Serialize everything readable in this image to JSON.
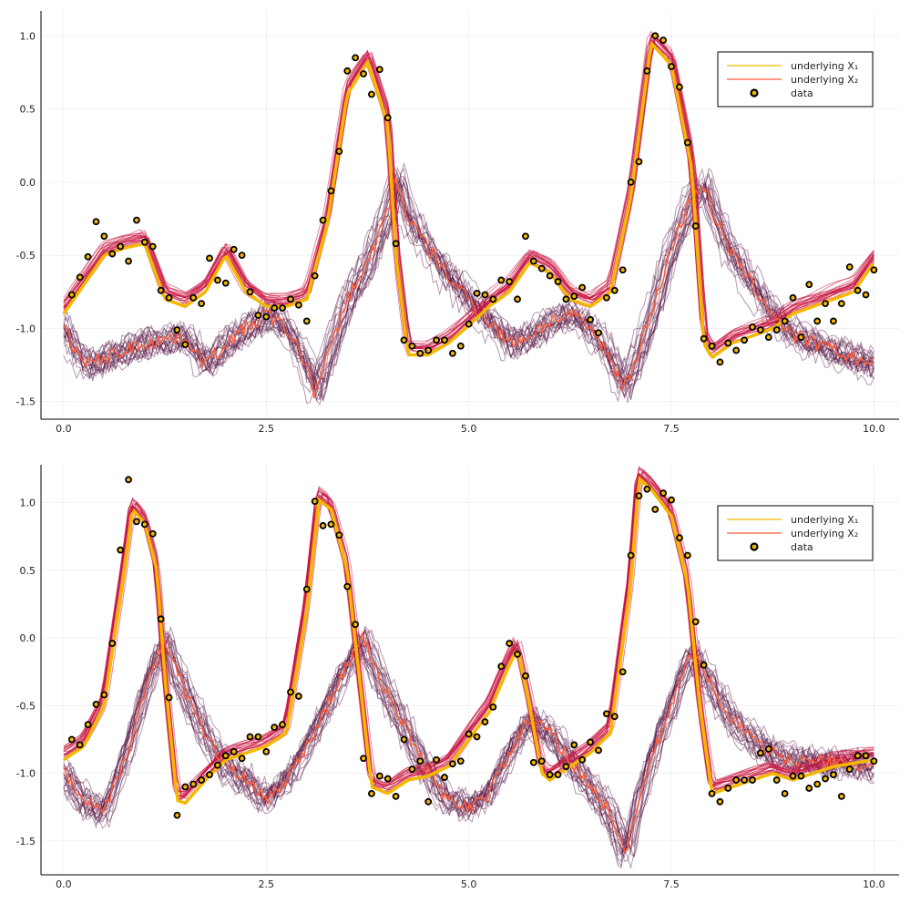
{
  "colors": {
    "x1": "#f5b800",
    "x2": "#ff5a36",
    "ensemble1": "#c8103c",
    "ensemble2": "#5a1a4a",
    "data_fill": "#f5b800",
    "data_edge": "#000000"
  },
  "chart_data": [
    {
      "type": "line",
      "xlim": [
        -0.28,
        10.31
      ],
      "ylim": [
        -1.62,
        1.17
      ],
      "xticks": [
        "0.0",
        "2.5",
        "5.0",
        "7.5",
        "10.0"
      ],
      "yticks": [
        "-1.5",
        "-1.0",
        "-0.5",
        "0.0",
        "0.5",
        "1.0"
      ],
      "grid": true,
      "legend_position": "top-right",
      "legend": [
        "underlying X₁",
        "underlying X₂",
        "data"
      ],
      "series": [
        {
          "name": "underlying X₁",
          "x": [
            0,
            0.25,
            0.5,
            0.75,
            1.0,
            1.25,
            1.5,
            1.75,
            2.0,
            2.25,
            2.5,
            2.75,
            3.0,
            3.25,
            3.5,
            3.75,
            4.0,
            4.1,
            4.25,
            4.5,
            4.75,
            5.0,
            5.25,
            5.5,
            5.75,
            6.0,
            6.25,
            6.5,
            6.75,
            7.0,
            7.25,
            7.5,
            7.75,
            7.9,
            8.0,
            8.25,
            8.5,
            8.75,
            9.0,
            9.25,
            9.5,
            9.75,
            10
          ],
          "y": [
            -0.9,
            -0.7,
            -0.5,
            -0.45,
            -0.42,
            -0.8,
            -0.85,
            -0.75,
            -0.5,
            -0.75,
            -0.85,
            -0.85,
            -0.8,
            -0.3,
            0.6,
            0.82,
            0.4,
            -0.5,
            -1.18,
            -1.18,
            -1.1,
            -0.98,
            -0.85,
            -0.75,
            -0.55,
            -0.62,
            -0.8,
            -0.85,
            -0.75,
            -0.1,
            0.95,
            0.8,
            0.1,
            -1.1,
            -1.2,
            -1.1,
            -1.05,
            -1.0,
            -0.9,
            -0.85,
            -0.8,
            -0.75,
            -0.55
          ]
        },
        {
          "name": "underlying X₂",
          "x": [
            0,
            0.25,
            0.5,
            0.75,
            1.0,
            1.5,
            1.75,
            2.0,
            2.5,
            2.75,
            3.0,
            3.1,
            3.25,
            3.5,
            3.75,
            4.0,
            4.1,
            4.25,
            4.5,
            4.75,
            5.0,
            5.25,
            5.5,
            5.75,
            6.0,
            6.25,
            6.5,
            6.75,
            6.9,
            7.0,
            7.25,
            7.5,
            7.75,
            7.9,
            8.0,
            8.25,
            8.5,
            8.75,
            9.0,
            9.5,
            10
          ],
          "y": [
            -1.0,
            -1.25,
            -1.2,
            -1.15,
            -1.1,
            -1.05,
            -1.25,
            -1.1,
            -0.9,
            -1.0,
            -1.25,
            -1.45,
            -1.2,
            -0.8,
            -0.55,
            -0.2,
            0.05,
            -0.25,
            -0.45,
            -0.65,
            -0.8,
            -0.95,
            -1.1,
            -1.05,
            -0.95,
            -0.9,
            -1.0,
            -1.2,
            -1.4,
            -1.3,
            -0.9,
            -0.45,
            -0.1,
            0.0,
            -0.2,
            -0.5,
            -0.7,
            -0.9,
            -1.05,
            -1.15,
            -1.25
          ]
        },
        {
          "name": "data",
          "type": "scatter",
          "x_start": 0.1,
          "x_step": 0.1,
          "y": [
            -0.77,
            -0.65,
            -0.51,
            -0.27,
            -0.37,
            -0.49,
            -0.44,
            -0.54,
            -0.26,
            -0.41,
            -0.44,
            -0.74,
            -0.79,
            -1.01,
            -1.11,
            -0.79,
            -0.83,
            -0.52,
            -0.67,
            -0.69,
            -0.46,
            -0.5,
            -0.75,
            -0.91,
            -0.92,
            -0.86,
            -0.86,
            -0.8,
            -0.84,
            -0.95,
            -0.64,
            -0.26,
            -0.06,
            0.21,
            0.76,
            0.85,
            0.74,
            0.6,
            0.77,
            0.44,
            -0.42,
            -1.08,
            -1.12,
            -1.17,
            -1.15,
            -1.08,
            -1.08,
            -1.17,
            -1.12,
            -0.97,
            -0.76,
            -0.77,
            -0.8,
            -0.67,
            -0.68,
            -0.8,
            -0.37,
            -0.54,
            -0.59,
            -0.64,
            -0.68,
            -0.8,
            -0.78,
            -0.72,
            -0.94,
            -1.03,
            -0.79,
            -0.74,
            -0.6,
            0.0,
            0.14,
            0.76,
            1.0,
            0.97,
            0.79,
            0.65,
            0.27,
            -0.3,
            -1.07,
            -1.12,
            -1.23,
            -1.1,
            -1.15,
            -1.08,
            -0.99,
            -1.01,
            -1.06,
            -1.01,
            -0.95,
            -0.79,
            -1.06,
            -0.7,
            -0.95,
            -0.83,
            -0.95,
            -0.83,
            -0.58,
            -0.74,
            -0.77,
            -0.6
          ]
        }
      ]
    },
    {
      "type": "line",
      "xlim": [
        -0.28,
        10.31
      ],
      "ylim": [
        -1.75,
        1.28
      ],
      "xticks": [
        "0.0",
        "2.5",
        "5.0",
        "7.5",
        "10.0"
      ],
      "yticks": [
        "-1.5",
        "-1.0",
        "-0.5",
        "0.0",
        "0.5",
        "1.0"
      ],
      "grid": true,
      "legend_position": "top-right",
      "legend": [
        "underlying X₁",
        "underlying X₂",
        "data"
      ],
      "series": [
        {
          "name": "underlying X₁",
          "x": [
            0,
            0.25,
            0.5,
            0.75,
            0.85,
            1.0,
            1.15,
            1.25,
            1.4,
            1.5,
            1.75,
            2.0,
            2.5,
            2.75,
            3.0,
            3.15,
            3.3,
            3.5,
            3.65,
            3.8,
            4.0,
            4.25,
            4.5,
            4.75,
            5.0,
            5.25,
            5.5,
            5.6,
            5.75,
            5.9,
            6.0,
            6.25,
            6.5,
            6.75,
            7.0,
            7.1,
            7.25,
            7.5,
            7.7,
            7.85,
            8.0,
            8.25,
            8.5,
            8.75,
            9.0,
            9.25,
            9.5,
            10
          ],
          "y": [
            -0.9,
            -0.8,
            -0.5,
            0.5,
            0.95,
            0.85,
            0.5,
            -0.3,
            -1.2,
            -1.22,
            -1.05,
            -0.9,
            -0.8,
            -0.7,
            0.2,
            1.02,
            0.95,
            0.5,
            -0.3,
            -1.1,
            -1.15,
            -1.05,
            -1.02,
            -0.95,
            -0.75,
            -0.55,
            -0.2,
            -0.08,
            -0.5,
            -1.0,
            -1.05,
            -0.95,
            -0.85,
            -0.7,
            0.4,
            1.18,
            1.1,
            0.9,
            0.4,
            -0.5,
            -1.15,
            -1.1,
            -1.05,
            -1.0,
            -1.05,
            -1.0,
            -0.95,
            -0.9
          ]
        },
        {
          "name": "underlying X₂",
          "x": [
            0,
            0.25,
            0.5,
            0.75,
            1.0,
            1.25,
            1.5,
            1.75,
            2.0,
            2.25,
            2.5,
            2.75,
            3.0,
            3.25,
            3.5,
            3.7,
            3.9,
            4.25,
            4.5,
            4.75,
            5.0,
            5.25,
            5.5,
            5.75,
            6.0,
            6.25,
            6.5,
            6.75,
            6.95,
            7.1,
            7.25,
            7.5,
            7.75,
            8.0,
            8.25,
            8.5,
            8.75,
            9.0,
            10
          ],
          "y": [
            -1.0,
            -1.2,
            -1.3,
            -0.9,
            -0.4,
            0.0,
            -0.4,
            -0.7,
            -0.95,
            -1.05,
            -1.2,
            -1.05,
            -0.8,
            -0.5,
            -0.2,
            0.0,
            -0.3,
            -0.7,
            -1.0,
            -1.2,
            -1.25,
            -1.15,
            -0.85,
            -0.6,
            -0.7,
            -0.9,
            -1.1,
            -1.3,
            -1.6,
            -1.2,
            -0.9,
            -0.5,
            -0.1,
            -0.35,
            -0.6,
            -0.75,
            -0.85,
            -0.9,
            -0.95
          ]
        },
        {
          "name": "data",
          "type": "scatter",
          "x_start": 0.1,
          "x_step": 0.1,
          "y": [
            -0.75,
            -0.79,
            -0.64,
            -0.49,
            -0.42,
            -0.04,
            0.65,
            1.17,
            0.86,
            0.84,
            0.77,
            0.14,
            -0.44,
            -1.31,
            -1.1,
            -1.08,
            -1.05,
            -1.01,
            -0.94,
            -0.87,
            -0.84,
            -0.89,
            -0.73,
            -0.73,
            -0.84,
            -0.66,
            -0.64,
            -0.4,
            -0.43,
            0.36,
            1.01,
            0.83,
            0.84,
            0.76,
            0.38,
            0.1,
            -0.89,
            -1.15,
            -1.02,
            -1.04,
            -1.17,
            -0.75,
            -0.97,
            -0.91,
            -1.21,
            -0.9,
            -1.03,
            -0.93,
            -0.91,
            -0.71,
            -0.73,
            -0.62,
            -0.51,
            -0.21,
            -0.04,
            -0.12,
            -0.28,
            -0.92,
            -0.91,
            -1.01,
            -1.01,
            -0.95,
            -0.79,
            -0.9,
            -0.77,
            -0.83,
            -0.56,
            -0.58,
            -0.25,
            0.61,
            1.05,
            1.1,
            0.95,
            1.07,
            1.02,
            0.74,
            0.61,
            0.12,
            -0.2,
            -1.15,
            -1.21,
            -1.11,
            -1.05,
            -1.05,
            -1.05,
            -0.85,
            -0.82,
            -1.05,
            -1.15,
            -1.02,
            -1.02,
            -1.11,
            -1.08,
            -1.04,
            -1.01,
            -1.17,
            -0.97,
            -0.87,
            -0.87,
            -0.91
          ]
        }
      ]
    }
  ]
}
